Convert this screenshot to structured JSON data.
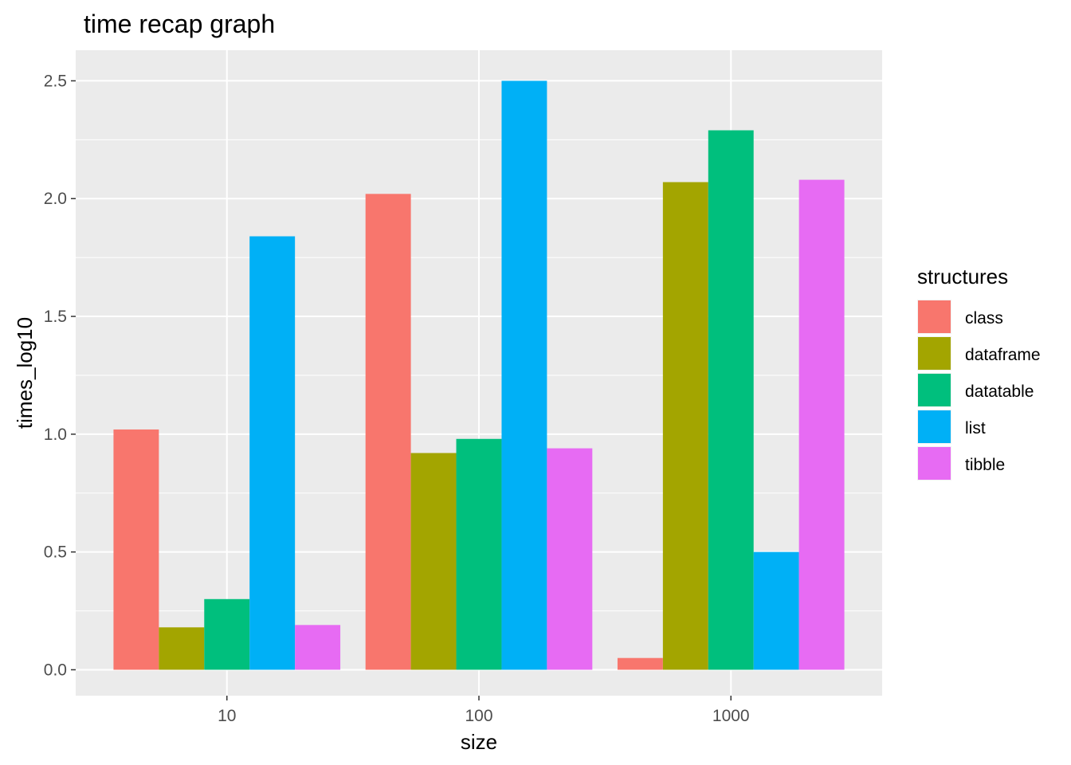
{
  "chart_data": {
    "type": "bar",
    "title": "time recap graph",
    "xlabel": "size",
    "ylabel": "times_log10",
    "categories": [
      "10",
      "100",
      "1000"
    ],
    "ylim": [
      -0.11,
      2.63
    ],
    "yticks": [
      "0.0",
      "0.5",
      "1.0",
      "1.5",
      "2.0",
      "2.5"
    ],
    "ytick_values": [
      0,
      0.5,
      1,
      1.5,
      2,
      2.5
    ],
    "grid": true,
    "legend_title": "structures",
    "legend_position": "right",
    "series": [
      {
        "name": "class",
        "color": "#F8766D",
        "values": [
          1.02,
          2.02,
          0.05
        ]
      },
      {
        "name": "dataframe",
        "color": "#A3A500",
        "values": [
          0.18,
          0.92,
          2.07
        ]
      },
      {
        "name": "datatable",
        "color": "#00BF7D",
        "values": [
          0.3,
          0.98,
          2.29
        ]
      },
      {
        "name": "list",
        "color": "#00B0F6",
        "values": [
          1.84,
          2.5,
          0.5
        ]
      },
      {
        "name": "tibble",
        "color": "#E76BF3",
        "values": [
          0.19,
          0.94,
          2.08
        ]
      }
    ]
  }
}
